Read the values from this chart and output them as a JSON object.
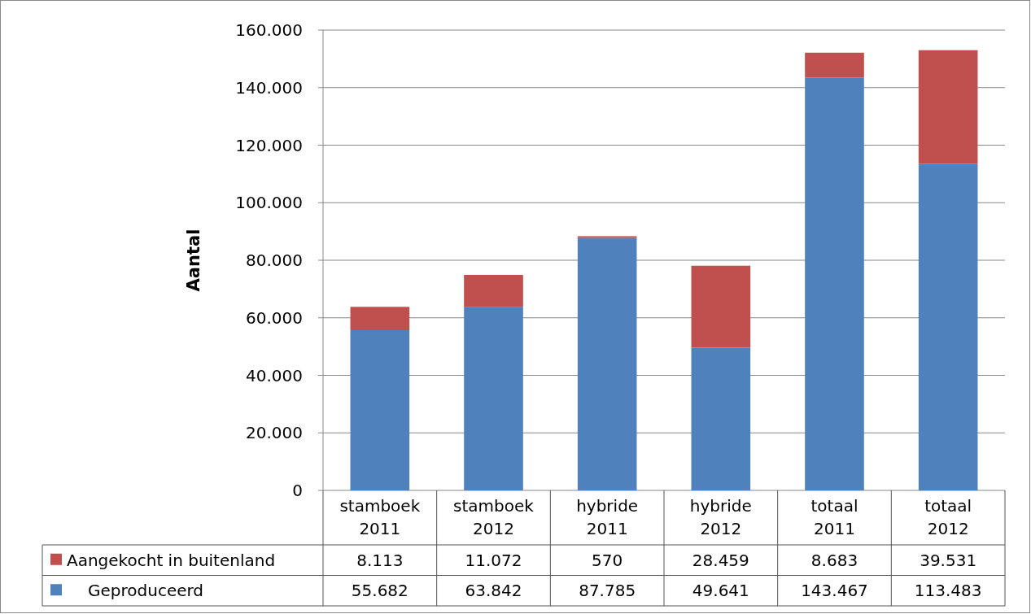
{
  "chart_data": {
    "type": "bar",
    "stacked": true,
    "ylabel": "Aantal",
    "categories": [
      "stamboek 2011",
      "stamboek 2012",
      "hybride 2011",
      "hybride 2012",
      "totaal 2011",
      "totaal 2012"
    ],
    "series": [
      {
        "name": "Geproduceerd",
        "color": "#4f81bd",
        "values": [
          55682,
          63842,
          87785,
          49641,
          143467,
          113483
        ],
        "value_labels": [
          "55.682",
          "63.842",
          "87.785",
          "49.641",
          "143.467",
          "113.483"
        ]
      },
      {
        "name": "Aangekocht in buitenland",
        "color": "#c0504d",
        "values": [
          8113,
          11072,
          570,
          28459,
          8683,
          39531
        ],
        "value_labels": [
          "8.113",
          "11.072",
          "570",
          "28.459",
          "8.683",
          "39.531"
        ]
      }
    ],
    "ylim": [
      0,
      160000
    ],
    "yticks": [
      {
        "value": 0,
        "label": "0"
      },
      {
        "value": 20000,
        "label": "20.000"
      },
      {
        "value": 40000,
        "label": "40.000"
      },
      {
        "value": 60000,
        "label": "60.000"
      },
      {
        "value": 80000,
        "label": "80.000"
      },
      {
        "value": 100000,
        "label": "100.000"
      },
      {
        "value": 120000,
        "label": "120.000"
      },
      {
        "value": 140000,
        "label": "140.000"
      },
      {
        "value": 160000,
        "label": "160.000"
      }
    ],
    "grid": "y",
    "legend": "bottom"
  }
}
